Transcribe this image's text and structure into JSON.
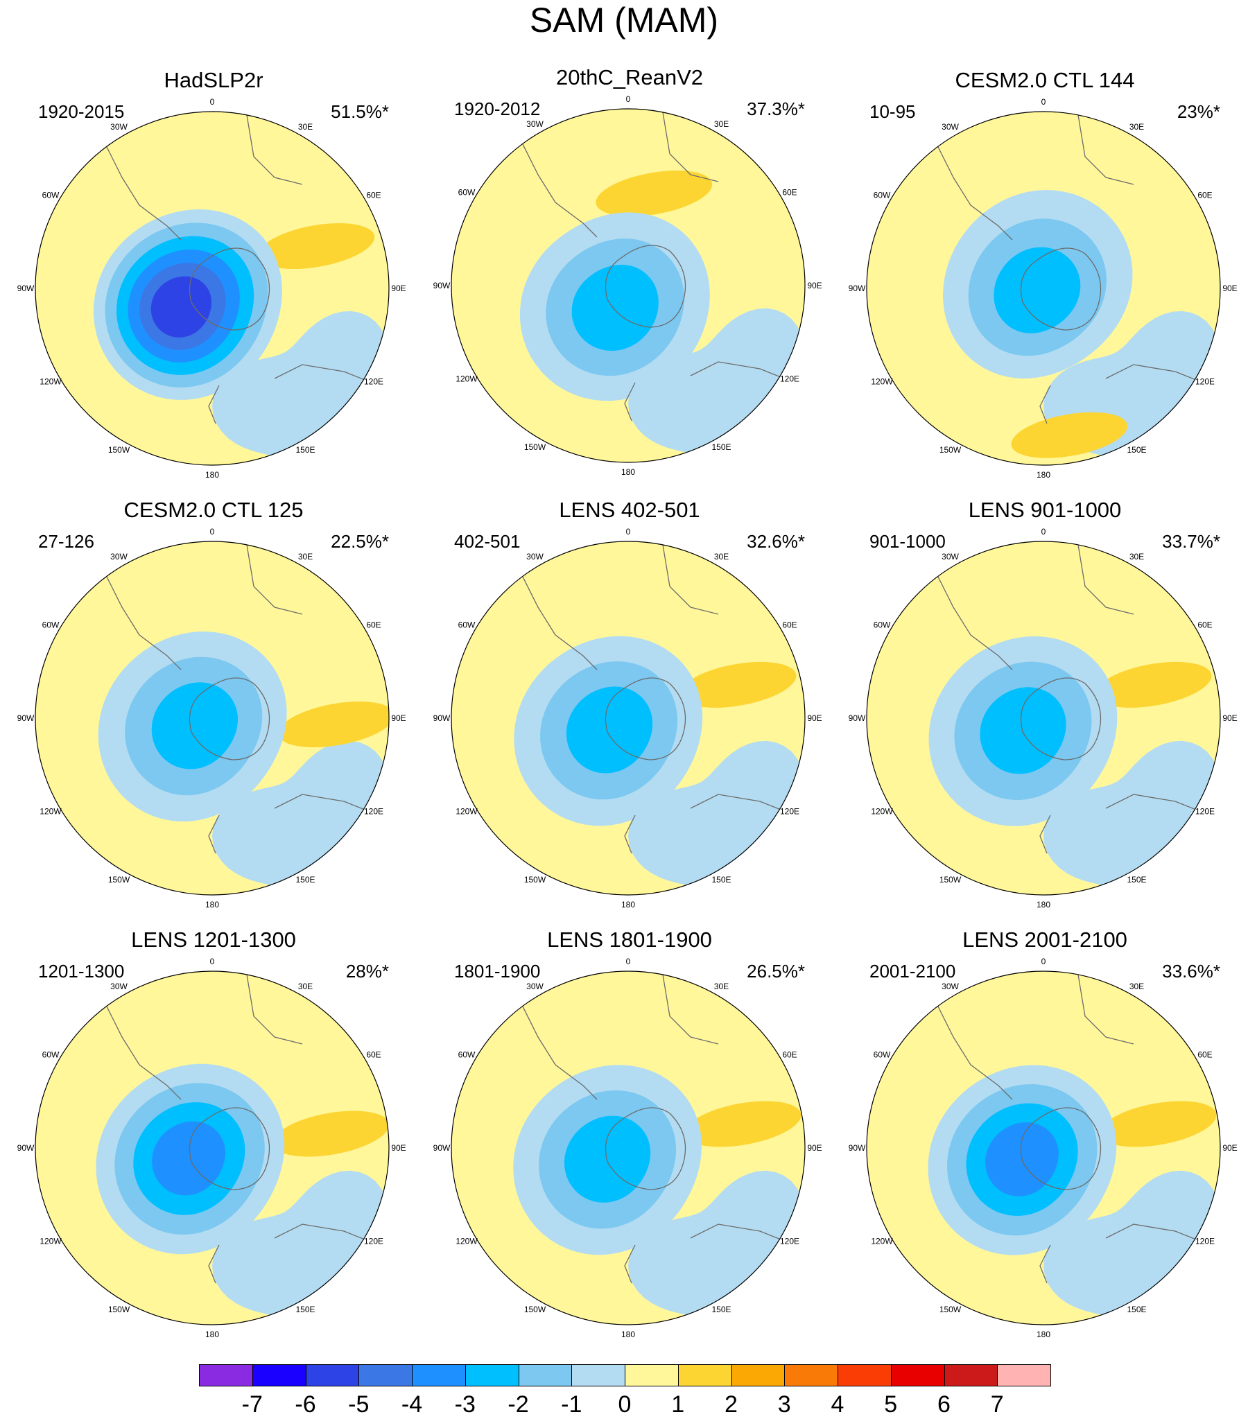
{
  "figure": {
    "title": "SAM (MAM)"
  },
  "chart_data": {
    "type": "contour",
    "title": "SAM (MAM)",
    "projection": "south-polar-stereographic",
    "longitude_labels": [
      "0",
      "30E",
      "60E",
      "90E",
      "120E",
      "150E",
      "180",
      "150W",
      "120W",
      "90W",
      "60W",
      "30W"
    ],
    "panels": [
      {
        "title": "HadSLP2r",
        "period": "1920-2015",
        "variance": "51.5%*",
        "center_min": -6,
        "low_lobe": {
          "angle_deg": 245,
          "strength": 0.65
        },
        "ring": "positive"
      },
      {
        "title": "20thC_ReanV2",
        "period": "1920-2012",
        "variance": "37.3%*",
        "center_min": -3,
        "low_lobe": {
          "angle_deg": 200,
          "strength": 0.3
        },
        "ring": "positive"
      },
      {
        "title": "CESM2.0 CTL 144",
        "period": "10-95",
        "variance": "23%*",
        "center_min": -3,
        "low_lobe": {
          "angle_deg": 0,
          "strength": 0
        },
        "ring": "positive-with-negative-west"
      },
      {
        "title": "CESM2.0 CTL 125",
        "period": "27-126",
        "variance": "22.5%*",
        "center_min": -3,
        "low_lobe": {
          "angle_deg": 270,
          "strength": 0.15
        },
        "ring": "positive"
      },
      {
        "title": "LENS 402-501",
        "period": "402-501",
        "variance": "32.6%*",
        "center_min": -3,
        "low_lobe": {
          "angle_deg": 250,
          "strength": 0.2
        },
        "ring": "positive"
      },
      {
        "title": "LENS 901-1000",
        "period": "901-1000",
        "variance": "33.7%*",
        "center_min": -3,
        "low_lobe": {
          "angle_deg": 250,
          "strength": 0.25
        },
        "ring": "positive"
      },
      {
        "title": "LENS 1201-1300",
        "period": "1201-1300",
        "variance": "28%*",
        "center_min": -4,
        "low_lobe": {
          "angle_deg": 260,
          "strength": 0.35
        },
        "ring": "positive"
      },
      {
        "title": "LENS 1801-1900",
        "period": "1801-1900",
        "variance": "26.5%*",
        "center_min": -3,
        "low_lobe": {
          "angle_deg": 255,
          "strength": 0.25
        },
        "ring": "positive"
      },
      {
        "title": "LENS 2001-2100",
        "period": "2001-2100",
        "variance": "33.6%*",
        "center_min": -4,
        "low_lobe": {
          "angle_deg": 255,
          "strength": 0.3
        },
        "ring": "positive"
      }
    ],
    "colorbar": {
      "levels": [
        -7,
        -6,
        -5,
        -4,
        -3,
        -2,
        -1,
        0,
        1,
        2,
        3,
        4,
        5,
        6,
        7
      ],
      "tick_labels": [
        "-7",
        "-6",
        "-5",
        "-4",
        "-3",
        "-2",
        "-1",
        "0",
        "1",
        "2",
        "3",
        "4",
        "5",
        "6",
        "7"
      ],
      "colors": [
        "#8a2be2",
        "#1a00ff",
        "#2e43e6",
        "#3c77e6",
        "#1e90ff",
        "#00bfff",
        "#7cc8f0",
        "#b3dcf2",
        "#fff79a",
        "#fdd532",
        "#fba804",
        "#fa7a08",
        "#fa3c05",
        "#e80000",
        "#cc1a1a",
        "#ffb3b3"
      ]
    }
  }
}
